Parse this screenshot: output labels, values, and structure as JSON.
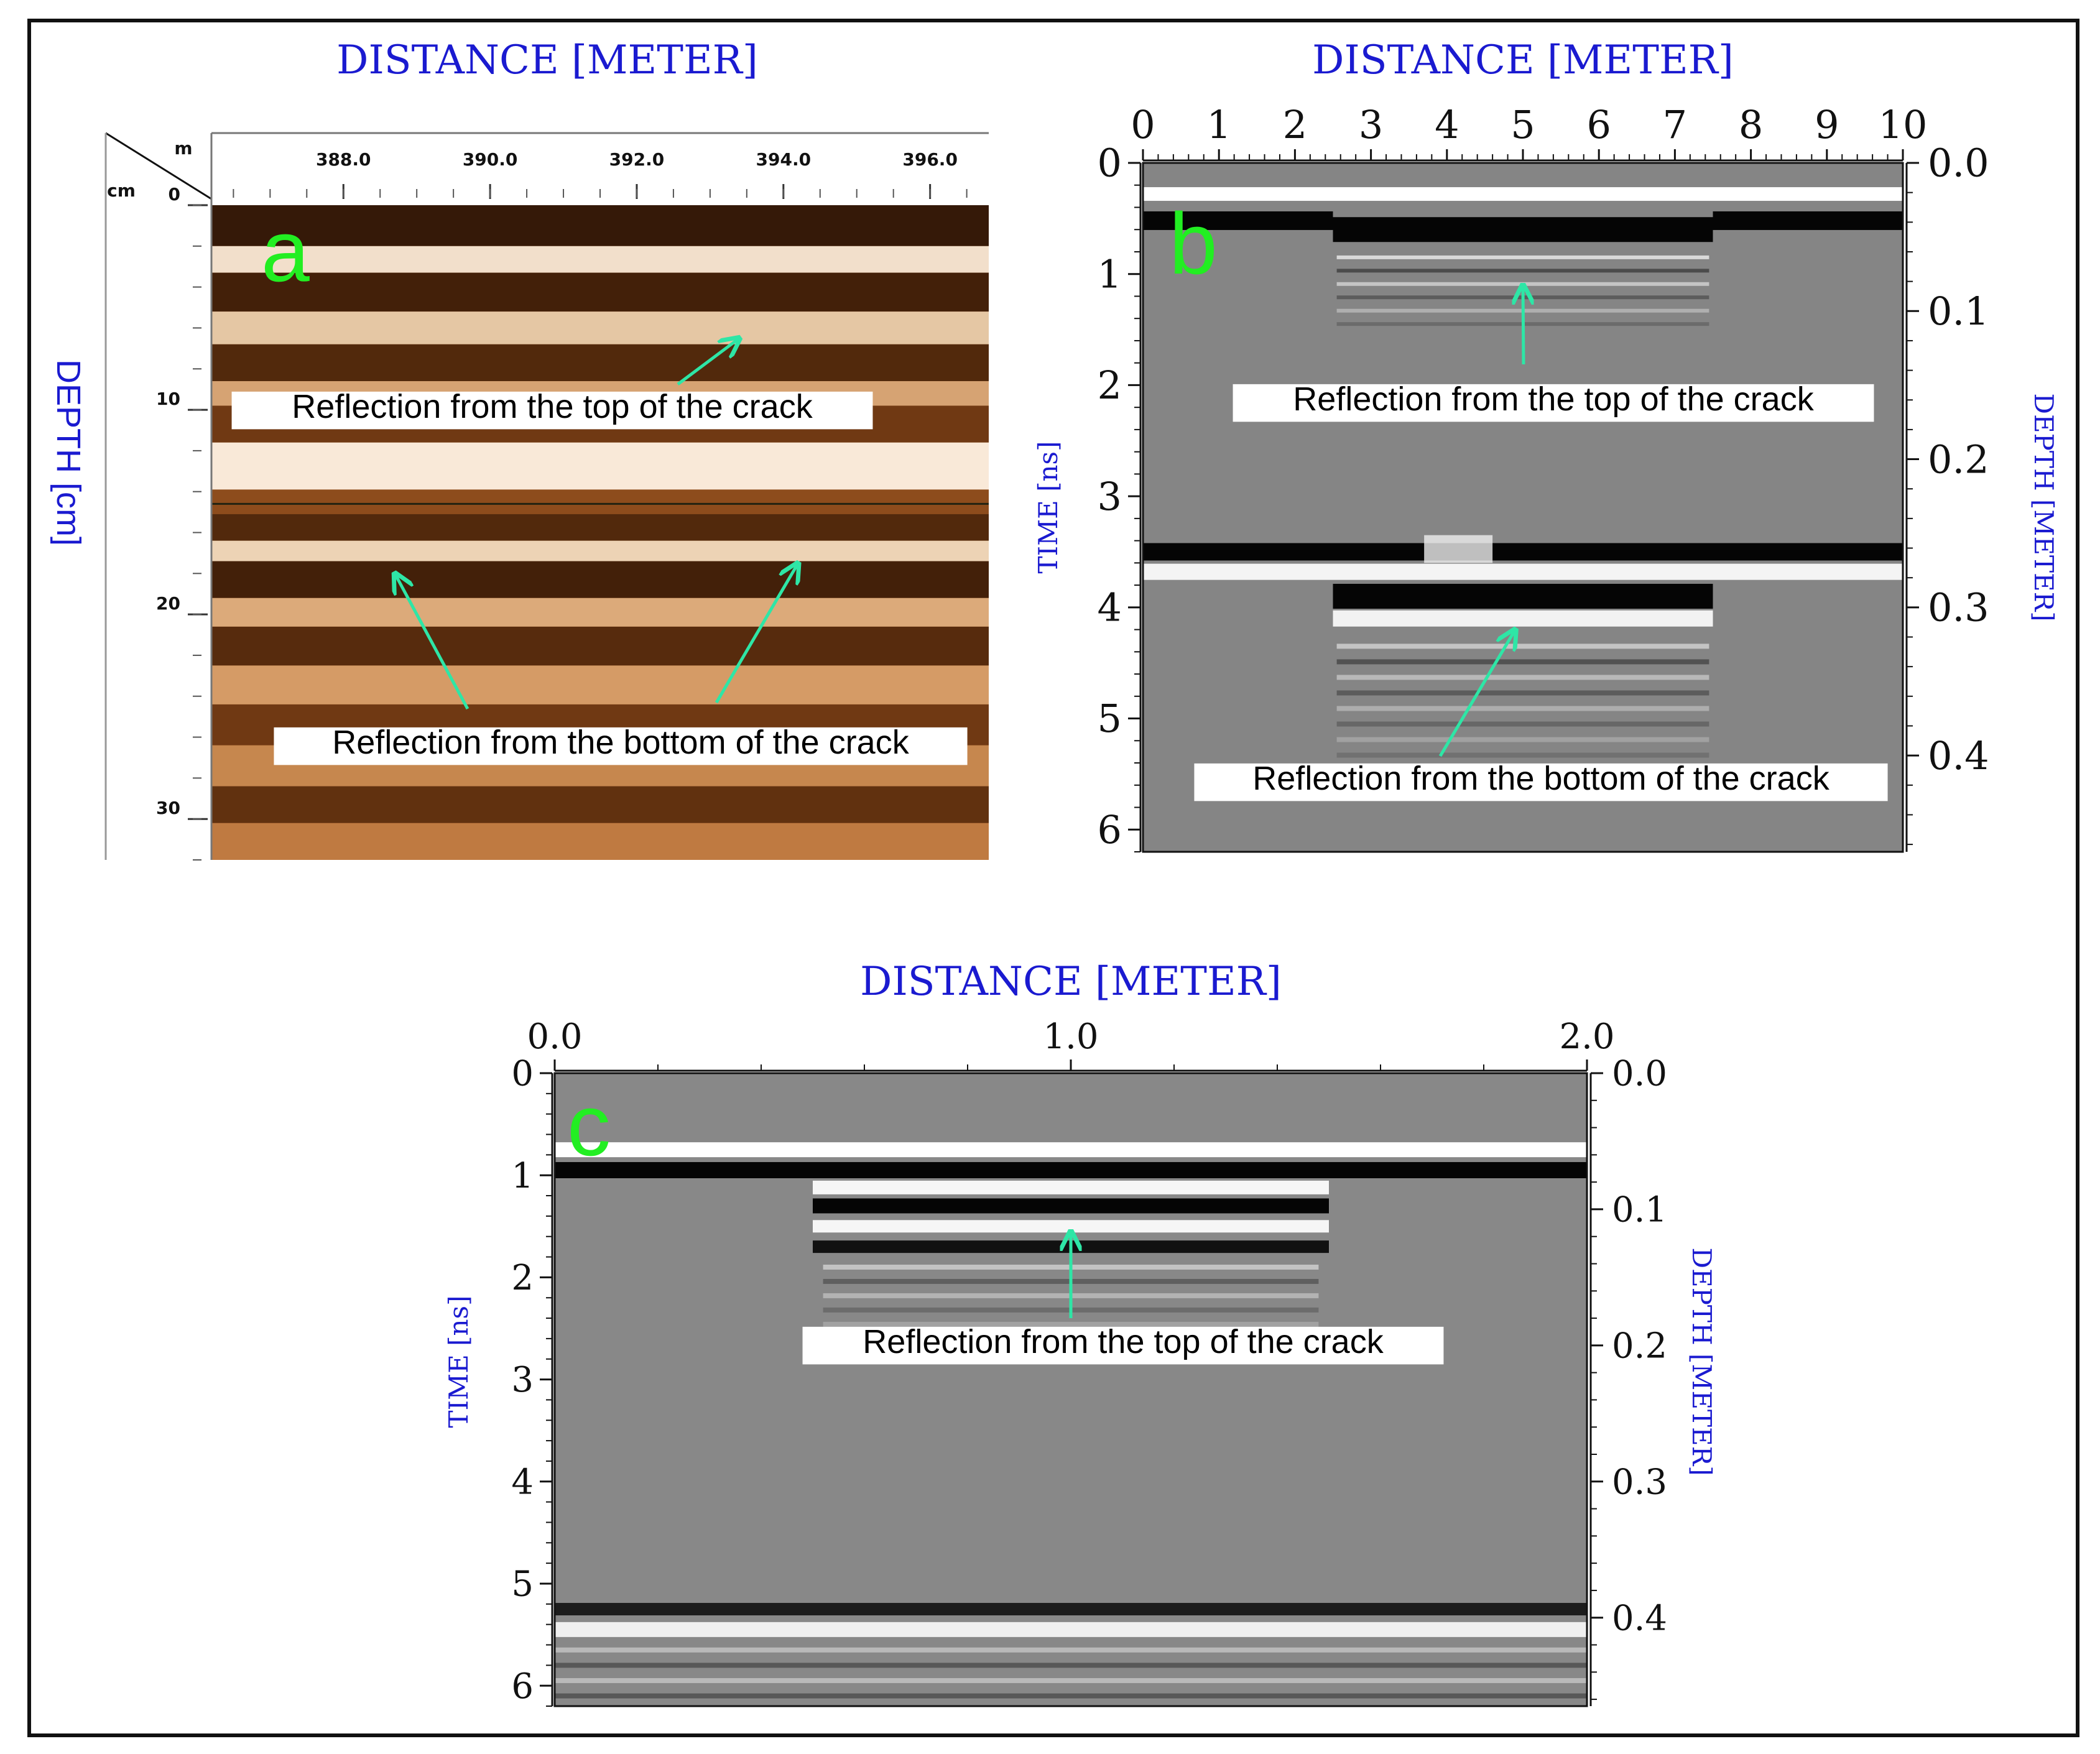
{
  "chart_data": [
    {
      "type": "heatmap",
      "panel_label": "a",
      "title": "DISTANCE [METER]",
      "ylabel": "DEPTH [cm]",
      "x_unit": "m",
      "y_unit": "cm",
      "xlim": [
        386.2,
        396.8
      ],
      "ylim": [
        0,
        32
      ],
      "x_ticks": [
        "388.0",
        "390.0",
        "392.0",
        "394.0",
        "396.0"
      ],
      "y_ticks": [
        "0",
        "10",
        "20",
        "30"
      ],
      "colormap": [
        "#3a1a05",
        "#c87b35",
        "#fff6ea"
      ],
      "annotations": [
        {
          "text": "Reflection from the top of the crack",
          "arrow_to": [
            393.4,
            6.5
          ]
        },
        {
          "text": "Reflection from the bottom of the crack",
          "arrow_to": [
            [
              388.7,
              18.0
            ],
            [
              394.2,
              17.5
            ]
          ]
        }
      ]
    },
    {
      "type": "heatmap",
      "panel_label": "b",
      "title": "DISTANCE [METER]",
      "ylabel": "TIME [ns]",
      "y2label": "DEPTH [METER]",
      "xlim": [
        0,
        10
      ],
      "ylim": [
        0,
        6.2
      ],
      "y2lim": [
        0,
        0.465
      ],
      "x_ticks": [
        "0",
        "1",
        "2",
        "3",
        "4",
        "5",
        "6",
        "7",
        "8",
        "9",
        "10"
      ],
      "y_ticks": [
        "0",
        "1",
        "2",
        "3",
        "4",
        "5",
        "6"
      ],
      "y2_ticks": [
        "0.0",
        "0.1",
        "0.2",
        "0.3",
        "0.4"
      ],
      "colormap": [
        "#000000",
        "#808080",
        "#ffffff"
      ],
      "annotations": [
        {
          "text": "Reflection from the top of the crack",
          "arrow_to": [
            5.0,
            1.1
          ]
        },
        {
          "text": "Reflection from the bottom of the crack",
          "arrow_to": [
            4.9,
            4.2
          ]
        }
      ]
    },
    {
      "type": "heatmap",
      "panel_label": "c",
      "title": "DISTANCE [METER]",
      "ylabel": "TIME [ns]",
      "y2label": "DEPTH [METER]",
      "xlim": [
        0,
        2.0
      ],
      "ylim": [
        0,
        6.2
      ],
      "y2lim": [
        0,
        0.465
      ],
      "x_ticks": [
        "0.0",
        "1.0",
        "2.0"
      ],
      "y_ticks": [
        "0",
        "1",
        "2",
        "3",
        "4",
        "5",
        "6"
      ],
      "y2_ticks": [
        "0.0",
        "0.1",
        "0.2",
        "0.3",
        "0.4"
      ],
      "colormap": [
        "#000000",
        "#808080",
        "#ffffff"
      ],
      "annotations": [
        {
          "text": "Reflection from the top of the crack",
          "arrow_to": [
            1.0,
            1.55
          ]
        }
      ]
    }
  ]
}
